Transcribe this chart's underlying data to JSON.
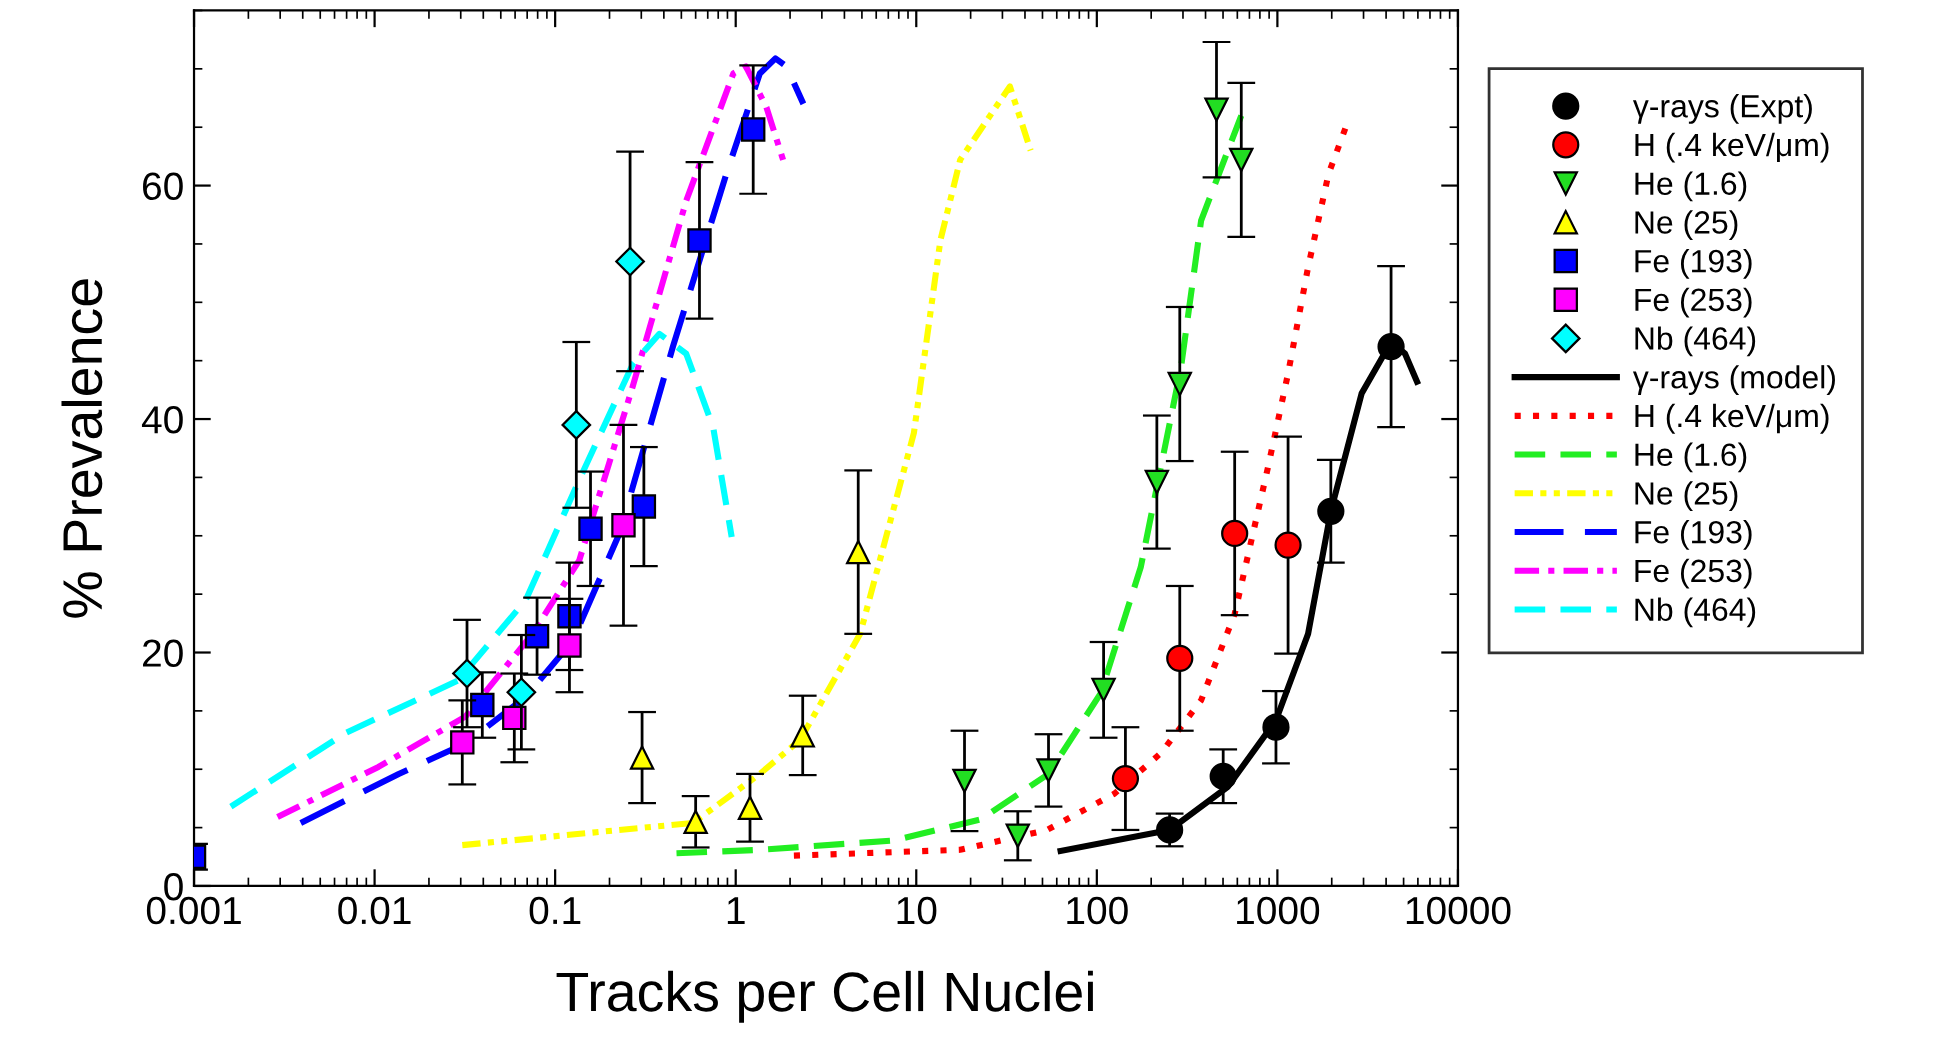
{
  "chart_data": {
    "type": "scatter",
    "xlabel": "Tracks per Cell Nuclei",
    "ylabel": "% Prevalence",
    "log": "x",
    "xlim": [
      0.001,
      10000
    ],
    "xticks": [
      {
        "value": 0.001,
        "label": "0.001"
      },
      {
        "value": 0.01,
        "label": "0.01"
      },
      {
        "value": 0.1,
        "label": "0.1"
      },
      1,
      10,
      100,
      1000,
      10000
    ],
    "ylim": [
      0,
      75
    ],
    "yticks": [
      0,
      {
        "value": 5,
        "label": null
      },
      {
        "value": 10,
        "label": null
      },
      {
        "value": 15,
        "label": null
      },
      20,
      {
        "value": 25,
        "label": null
      },
      {
        "value": 30,
        "label": null
      },
      {
        "value": 35,
        "label": null
      },
      40,
      {
        "value": 45,
        "label": null
      },
      {
        "value": 50,
        "label": null
      },
      {
        "value": 55,
        "label": null
      },
      60,
      {
        "value": 65,
        "label": null
      },
      {
        "value": 70,
        "label": null
      },
      {
        "value": 75,
        "label": null
      }
    ],
    "grid": false,
    "legend": "right",
    "series": [
      {
        "name": "γ-rays (Expt)",
        "marker": "circle",
        "color": "#000000",
        "x": [
          253,
          501,
          982,
          1977,
          4262
        ],
        "values": [
          4.8,
          9.4,
          13.6,
          32.1,
          46.2
        ],
        "errors": [
          1.4,
          2.3,
          3.1,
          4.4,
          6.9
        ]
      },
      {
        "name": "H (.4 keV/μm)",
        "marker": "circle",
        "color": "#ff0000",
        "x": [
          144,
          288,
          580,
          1146
        ],
        "values": [
          9.2,
          19.5,
          30.2,
          29.2
        ],
        "errors": [
          4.4,
          6.2,
          7.0,
          9.3
        ]
      },
      {
        "name": "He (1.6)",
        "marker": "triangle-down",
        "color": "#22dd22",
        "x": [
          18.5,
          36.5,
          54,
          109,
          215,
          288,
          460,
          631
        ],
        "values": [
          9.0,
          4.3,
          9.9,
          16.8,
          34.6,
          43.0,
          66.5,
          62.2
        ],
        "errors": [
          4.3,
          2.1,
          3.1,
          4.1,
          5.7,
          6.6,
          5.8,
          6.6
        ]
      },
      {
        "name": "Ne (25)",
        "marker": "triangle",
        "color": "#ffff00",
        "x": [
          0.303,
          0.6,
          1.2,
          2.35,
          4.77
        ],
        "values": [
          11.0,
          5.5,
          6.7,
          12.9,
          28.6
        ],
        "errors": [
          3.9,
          2.2,
          2.9,
          3.4,
          7.0
        ]
      },
      {
        "name": "Fe (193)",
        "marker": "square",
        "color": "#0000ff",
        "x": [
          0.001,
          0.0395,
          0.0794,
          0.12,
          0.157,
          0.31,
          0.63,
          1.25
        ],
        "values": [
          2.5,
          15.5,
          21.4,
          23.1,
          30.6,
          32.5,
          55.3,
          64.8
        ],
        "errors": [
          1.1,
          2.8,
          3.3,
          4.6,
          4.9,
          5.1,
          6.7,
          5.5
        ]
      },
      {
        "name": "Fe (253)",
        "marker": "square",
        "color": "#ff00ff",
        "x": [
          0.0306,
          0.0594,
          0.12,
          0.239
        ],
        "values": [
          12.3,
          14.4,
          20.6,
          30.9
        ],
        "errors": [
          3.6,
          3.8,
          4.0,
          8.6
        ]
      },
      {
        "name": "Nb (464)",
        "marker": "diamond",
        "color": "#00ffff",
        "x": [
          0.0325,
          0.065,
          0.131,
          0.26
        ],
        "values": [
          18.2,
          16.6,
          39.5,
          53.5
        ],
        "errors": [
          4.6,
          4.9,
          7.1,
          9.4
        ]
      },
      {
        "name": "γ-rays (model)",
        "type": "line",
        "line_style": "solid",
        "color": "#000000",
        "x": [
          63,
          253,
          532,
          982,
          1479,
          1977,
          2929,
          4262,
          5093,
          5934
        ],
        "values": [
          3.0,
          4.8,
          8.5,
          14.2,
          21.6,
          32.1,
          42.2,
          46.6,
          45.6,
          43.2
        ]
      },
      {
        "name": "H (.4 keV/μm)",
        "type": "line",
        "line_style": "dotted",
        "color": "#ff0000",
        "x": [
          2.1,
          17.5,
          53,
          125,
          227,
          378,
          580,
          888,
          1146,
          1479,
          1920,
          2472
        ],
        "values": [
          2.6,
          3.1,
          4.8,
          7.9,
          11.4,
          15.9,
          23.3,
          35.9,
          43.9,
          53.0,
          61.0,
          65.6
        ]
      },
      {
        "name": "He (1.6)",
        "type": "line",
        "line_style": "dashed",
        "color": "#22ee22",
        "x": [
          0.47,
          1.36,
          7.5,
          22.7,
          54,
          105,
          175,
          293,
          378,
          631
        ],
        "values": [
          2.8,
          3.1,
          3.9,
          5.7,
          9.6,
          16.5,
          27.3,
          44.5,
          57.0,
          66.0
        ]
      },
      {
        "name": "Ne (25)",
        "type": "line",
        "line_style": "dashdotdot",
        "color": "#ffff00",
        "x": [
          0.0306,
          0.58,
          1.36,
          2.27,
          4.89,
          9.7,
          13.6,
          17.5,
          33,
          43
        ],
        "values": [
          3.5,
          5.4,
          9.6,
          12.5,
          21.6,
          38.8,
          55.3,
          62.2,
          68.5,
          63.0
        ]
      },
      {
        "name": "Fe (193)",
        "type": "line",
        "line_style": "longdashed",
        "color": "#0000ff",
        "x": [
          0.0039,
          0.0136,
          0.0318,
          0.0688,
          0.125,
          0.227,
          0.449,
          0.887,
          1.36,
          1.66,
          1.91,
          2.37
        ],
        "values": [
          5.4,
          9.6,
          12.2,
          16.2,
          21.0,
          30.2,
          46.2,
          61.0,
          69.6,
          70.9,
          70.2,
          67.0
        ]
      },
      {
        "name": "Fe (253)",
        "type": "line",
        "line_style": "dashdot",
        "color": "#ff00ff",
        "x": [
          0.0029,
          0.0105,
          0.0318,
          0.0748,
          0.136,
          0.269,
          0.532,
          0.97,
          1.14,
          1.48,
          1.83
        ],
        "values": [
          5.9,
          10.2,
          14.5,
          21.6,
          27.9,
          42.8,
          58.7,
          69.6,
          70.2,
          66.7,
          62.2
        ]
      },
      {
        "name": "Nb (464)",
        "type": "line",
        "line_style": "dashed",
        "color": "#00ffff",
        "x": [
          0.0016,
          0.0069,
          0.029,
          0.0688,
          0.136,
          0.269,
          0.378,
          0.532,
          0.75,
          0.95
        ],
        "values": [
          6.8,
          13.1,
          17.6,
          24.5,
          34.8,
          44.7,
          47.3,
          45.6,
          39.3,
          29.9
        ]
      }
    ]
  }
}
